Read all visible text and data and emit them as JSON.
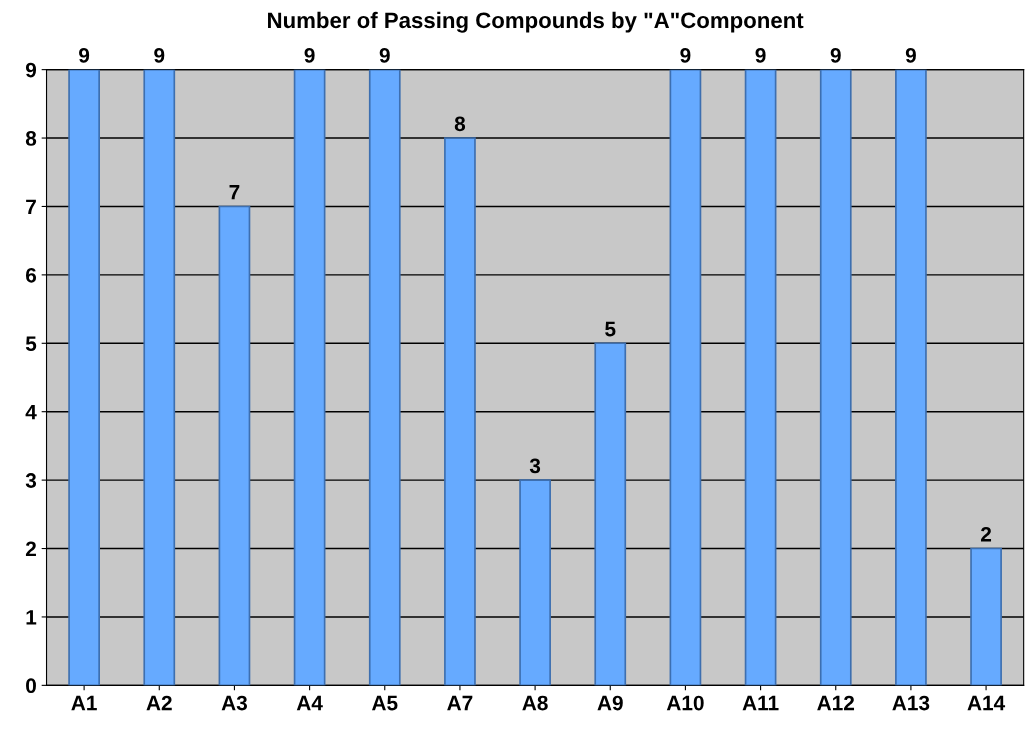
{
  "chart_data": {
    "type": "bar",
    "title": "Number of Passing Compounds by \"A\"Component",
    "categories": [
      "A1",
      "A2",
      "A3",
      "A4",
      "A5",
      "A7",
      "A8",
      "A9",
      "A10",
      "A11",
      "A12",
      "A13",
      "A14"
    ],
    "values": [
      9,
      9,
      7,
      9,
      9,
      8,
      3,
      5,
      9,
      9,
      9,
      9,
      2
    ],
    "color": "#66aaff",
    "ylim": [
      0,
      9
    ],
    "yticks": [
      0,
      1,
      2,
      3,
      4,
      5,
      6,
      7,
      8,
      9
    ],
    "grid": "y",
    "data_labels": true
  }
}
